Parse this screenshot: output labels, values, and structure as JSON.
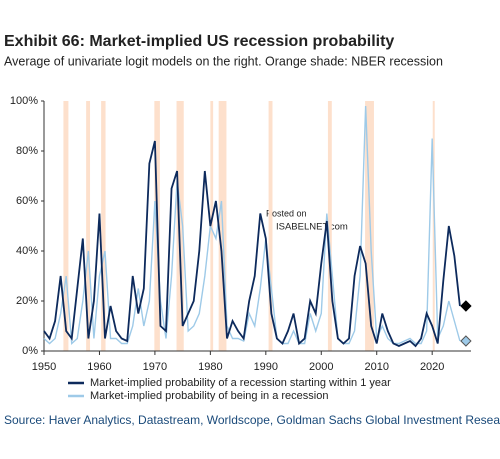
{
  "chart_data": {
    "type": "line",
    "title": "Exhibit 66: Market-implied US recession probability",
    "subtitle": "Average of univariate logit models on the right. Orange shade: NBER recession",
    "source": "Source: Haver Analytics, Datastream, Worldscope, Goldman Sachs Global Investment Research",
    "watermark": [
      "Posted on",
      "ISABELNET.com"
    ],
    "x": [
      1950,
      1951,
      1952,
      1953,
      1954,
      1955,
      1956,
      1957,
      1958,
      1959,
      1960,
      1961,
      1962,
      1963,
      1964,
      1965,
      1966,
      1967,
      1968,
      1969,
      1970,
      1971,
      1972,
      1973,
      1974,
      1975,
      1976,
      1977,
      1978,
      1979,
      1980,
      1981,
      1982,
      1983,
      1984,
      1985,
      1986,
      1987,
      1988,
      1989,
      1990,
      1991,
      1992,
      1993,
      1994,
      1995,
      1996,
      1997,
      1998,
      1999,
      2000,
      2001,
      2002,
      2003,
      2004,
      2005,
      2006,
      2007,
      2008,
      2009,
      2010,
      2011,
      2012,
      2013,
      2014,
      2015,
      2016,
      2017,
      2018,
      2019,
      2020,
      2021,
      2022,
      2023,
      2024,
      2025
    ],
    "series": [
      {
        "name": "Market-implied probability of a recession starting within 1 year",
        "color": "#0d2a5c",
        "values": [
          8,
          5,
          12,
          30,
          8,
          5,
          25,
          45,
          5,
          20,
          55,
          5,
          18,
          8,
          5,
          4,
          30,
          15,
          25,
          75,
          84,
          10,
          8,
          65,
          72,
          10,
          15,
          20,
          40,
          72,
          50,
          60,
          40,
          5,
          12,
          8,
          5,
          20,
          30,
          55,
          45,
          15,
          5,
          3,
          8,
          15,
          3,
          5,
          20,
          15,
          35,
          52,
          20,
          5,
          3,
          5,
          30,
          42,
          35,
          10,
          3,
          15,
          8,
          3,
          2,
          3,
          4,
          2,
          5,
          15,
          10,
          3,
          28,
          50,
          38,
          18
        ]
      },
      {
        "name": "Market-implied probability of being in a recession",
        "color": "#9ecae8",
        "values": [
          5,
          3,
          5,
          15,
          30,
          3,
          5,
          20,
          40,
          5,
          30,
          40,
          5,
          5,
          3,
          3,
          10,
          25,
          10,
          20,
          60,
          20,
          5,
          30,
          68,
          50,
          8,
          10,
          15,
          30,
          50,
          45,
          60,
          10,
          5,
          5,
          4,
          15,
          10,
          25,
          45,
          25,
          5,
          3,
          3,
          8,
          3,
          3,
          15,
          8,
          15,
          55,
          30,
          5,
          3,
          3,
          8,
          30,
          98,
          40,
          5,
          10,
          5,
          3,
          3,
          4,
          5,
          3,
          3,
          8,
          85,
          5,
          10,
          20,
          12,
          4
        ]
      }
    ],
    "recessions": [
      [
        1953.5,
        1954.4
      ],
      [
        1957.6,
        1958.3
      ],
      [
        1960.3,
        1961.1
      ],
      [
        1969.9,
        1970.9
      ],
      [
        1973.9,
        1975.2
      ],
      [
        1980.0,
        1980.5
      ],
      [
        1981.5,
        1982.9
      ],
      [
        1990.5,
        1991.2
      ],
      [
        2001.2,
        2001.9
      ],
      [
        2007.9,
        2009.5
      ],
      [
        2020.1,
        2020.3
      ]
    ],
    "recession_color": "#fde0cc",
    "xlim": [
      1950,
      2027
    ],
    "ylim": [
      0,
      100
    ],
    "xticks": [
      1950,
      1960,
      1970,
      1980,
      1990,
      2000,
      2010,
      2020
    ],
    "yticks": [
      {
        "value": 0,
        "label": "0%"
      },
      {
        "value": 20,
        "label": "20%"
      },
      {
        "value": 40,
        "label": "40%"
      },
      {
        "value": 60,
        "label": "60%"
      },
      {
        "value": 80,
        "label": "80%"
      },
      {
        "value": 100,
        "label": "100%"
      }
    ]
  }
}
